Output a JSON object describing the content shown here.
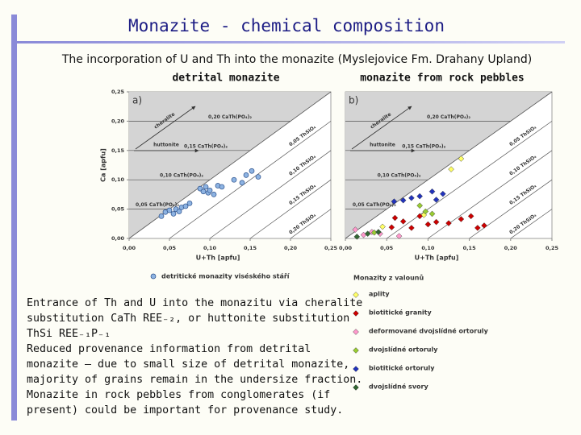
{
  "title": "Monazite - chemical composition",
  "subtitle": "The incorporation of U and Th into the monazite (Myslejovice Fm. Drahany Upland)",
  "panel_headings": [
    "detrital monazite",
    "monazite from rock pebbles"
  ],
  "body_lines": [
    "Entrance of Th and U into the  monazitu via cheralite",
    "substitution CaTh REE₋₂, or huttonite substitution",
    "ThSi REE₋₁P₋₁",
    "Reduced provenance information from detrital",
    "monazite – due to small size of detrital monazite,",
    "majority of grains remain in the undersize fraction.",
    "Monazite in rock pebbles from conglomerates (if",
    "present) could be important for provenance study."
  ],
  "chart_data": [
    {
      "type": "scatter",
      "panel_label": "a)",
      "marker": "circle",
      "ylabel": "Ca [apfu]",
      "xlabel": "U+Th [apfu]",
      "xlim": [
        0,
        0.25
      ],
      "ylim": [
        0,
        0.25
      ],
      "xticks": [
        {
          "value": 0,
          "label": "0,00"
        },
        {
          "value": 0.05,
          "label": "0,05"
        },
        {
          "value": 0.1,
          "label": "0,10"
        },
        {
          "value": 0.15,
          "label": "0,15"
        },
        {
          "value": 0.2,
          "label": "0,20"
        },
        {
          "value": 0.25,
          "label": "0,25"
        }
      ],
      "yticks": [
        {
          "value": 0,
          "label": "0,00"
        },
        {
          "value": 0.05,
          "label": "0,05"
        },
        {
          "value": 0.1,
          "label": "0,10"
        },
        {
          "value": 0.15,
          "label": "0,15"
        },
        {
          "value": 0.2,
          "label": "0,20"
        },
        {
          "value": 0.25,
          "label": "0,25"
        }
      ],
      "arrow_labels": [
        "cheralite",
        "huttonite"
      ],
      "horizontal_lines": [
        {
          "value": 0.05,
          "label": "0,05 CaTh(PO₄)₂"
        },
        {
          "value": 0.1,
          "label": "0,10 CaTh(PO₄)₂"
        },
        {
          "value": 0.15,
          "label": "0,15 CaTh(PO₄)₂"
        },
        {
          "value": 0.2,
          "label": "0,20 CaTh(PO₄)₂"
        }
      ],
      "diagonal_lines": [
        {
          "value": 0.05,
          "label": "0,05 ThSiO₄"
        },
        {
          "value": 0.1,
          "label": "0,10 ThSiO₄"
        },
        {
          "value": 0.15,
          "label": "0,15 ThSiO₄"
        },
        {
          "value": 0.2,
          "label": "0,20 ThSiO₄"
        }
      ],
      "series": [
        {
          "name": "detritické monazity viséského stáří",
          "color": "#8db3e2",
          "x": [
            0.04,
            0.045,
            0.05,
            0.055,
            0.058,
            0.062,
            0.065,
            0.07,
            0.075,
            0.088,
            0.092,
            0.095,
            0.098,
            0.1,
            0.105,
            0.11,
            0.115,
            0.13,
            0.14,
            0.145,
            0.152,
            0.16
          ],
          "values": [
            0.038,
            0.045,
            0.048,
            0.042,
            0.05,
            0.046,
            0.053,
            0.055,
            0.06,
            0.085,
            0.08,
            0.088,
            0.078,
            0.082,
            0.075,
            0.09,
            0.088,
            0.1,
            0.095,
            0.108,
            0.115,
            0.105
          ]
        }
      ]
    },
    {
      "type": "scatter",
      "panel_label": "b)",
      "marker": "diamond",
      "xlabel": "U+Th [apfu]",
      "legend_title": "Monazity z valounů",
      "xlim": [
        0,
        0.25
      ],
      "ylim": [
        0,
        0.25
      ],
      "xticks": [
        {
          "value": 0,
          "label": "0,00"
        },
        {
          "value": 0.05,
          "label": "0,05"
        },
        {
          "value": 0.1,
          "label": "0,10"
        },
        {
          "value": 0.15,
          "label": "0,15"
        },
        {
          "value": 0.2,
          "label": "0,20"
        },
        {
          "value": 0.25,
          "label": "0,25"
        }
      ],
      "arrow_labels": [
        "cheralite",
        "huttonite"
      ],
      "horizontal_lines": [
        {
          "value": 0.05,
          "label": "0,05 CaTh(PO₄)₂"
        },
        {
          "value": 0.1,
          "label": "0,10 CaTh(PO₄)₂"
        },
        {
          "value": 0.15,
          "label": "0,15 CaTh(PO₄)₂"
        },
        {
          "value": 0.2,
          "label": "0,20 CaTh(PO₄)₂"
        }
      ],
      "diagonal_lines": [
        {
          "value": 0.05,
          "label": "0,05 ThSiO₄"
        },
        {
          "value": 0.1,
          "label": "0,10 ThSiO₄"
        },
        {
          "value": 0.15,
          "label": "0,15 ThSiO₄"
        },
        {
          "value": 0.2,
          "label": "0,20 ThSiO₄"
        }
      ],
      "series": [
        {
          "name": "aplity",
          "color": "#ffff66",
          "x": [
            0.14,
            0.128,
            0.045,
            0.095
          ],
          "values": [
            0.136,
            0.118,
            0.02,
            0.04
          ]
        },
        {
          "name": "biotitické granity",
          "color": "#cc0000",
          "x": [
            0.056,
            0.07,
            0.08,
            0.1,
            0.11,
            0.125,
            0.14,
            0.152,
            0.16,
            0.09,
            0.168,
            0.06
          ],
          "values": [
            0.019,
            0.029,
            0.018,
            0.024,
            0.028,
            0.026,
            0.033,
            0.038,
            0.018,
            0.038,
            0.022,
            0.035
          ]
        },
        {
          "name": "deformované dvojslídné ortoruly",
          "color": "#ff99cc",
          "x": [
            0.012,
            0.022,
            0.032,
            0.042,
            0.065
          ],
          "values": [
            0.015,
            0.006,
            0.011,
            0.008,
            0.004
          ]
        },
        {
          "name": "dvojslídné ortoruly",
          "color": "#99cc33",
          "x": [
            0.09,
            0.097,
            0.105,
            0.035
          ],
          "values": [
            0.056,
            0.046,
            0.042,
            0.01
          ]
        },
        {
          "name": "biotitické ortoruly",
          "color": "#2233bb",
          "x": [
            0.059,
            0.07,
            0.08,
            0.09,
            0.105,
            0.118,
            0.11
          ],
          "values": [
            0.063,
            0.065,
            0.069,
            0.072,
            0.08,
            0.076,
            0.066
          ]
        },
        {
          "name": "dvojslídné svory",
          "color": "#336633",
          "x": [
            0.014,
            0.027,
            0.04
          ],
          "values": [
            0.003,
            0.008,
            0.011
          ]
        }
      ]
    }
  ]
}
